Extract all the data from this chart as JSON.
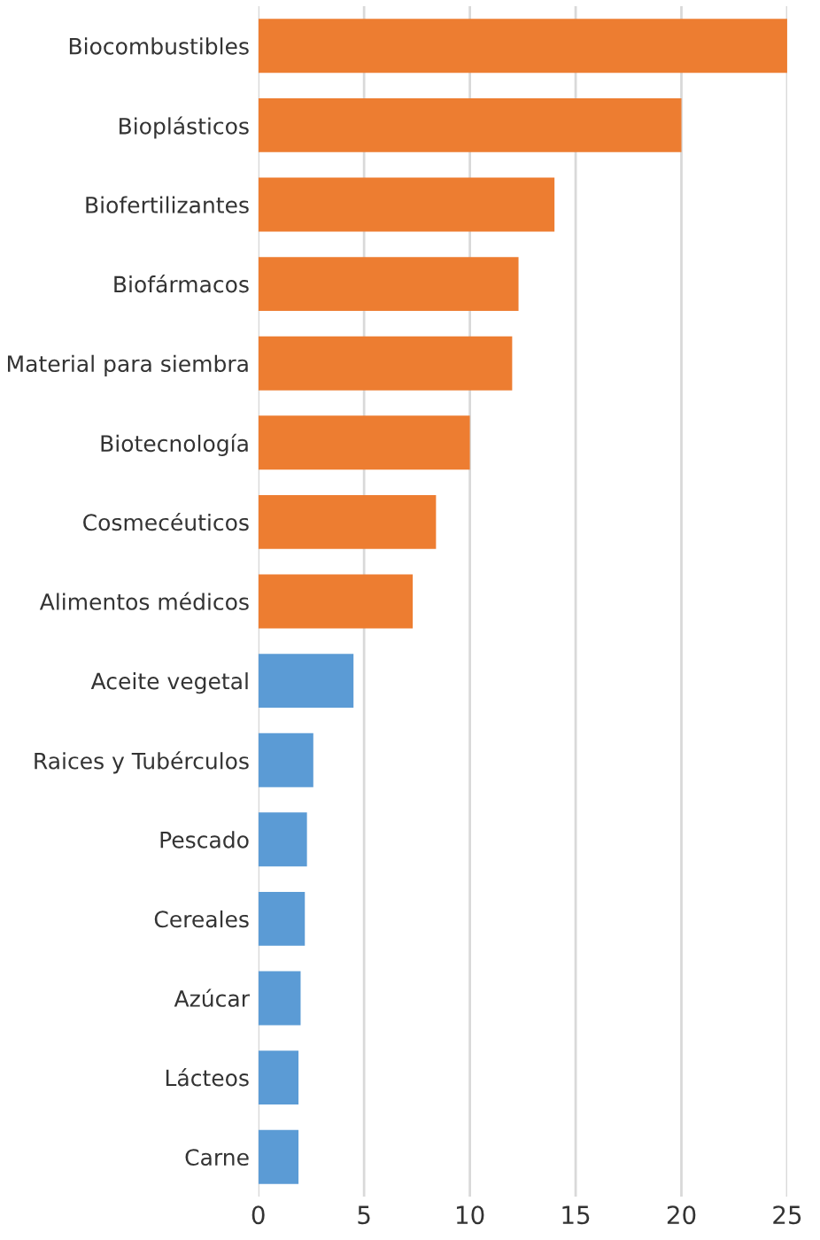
{
  "chart_data": {
    "type": "bar",
    "orientation": "horizontal",
    "categories": [
      "Biocombustibles",
      "Bioplásticos",
      "Biofertilizantes",
      "Biofármacos",
      "Material para siembra",
      "Biotecnología",
      "Cosmecéuticos",
      "Alimentos médicos",
      "Aceite vegetal",
      "Raices y Tubérculos",
      "Pescado",
      "Cereales",
      "Azúcar",
      "Lácteos",
      "Carne"
    ],
    "values": [
      25,
      20,
      14,
      12.3,
      12,
      10,
      8.4,
      7.3,
      4.5,
      2.6,
      2.3,
      2.2,
      2.0,
      1.9,
      1.9
    ],
    "colors": [
      "#ed7d31",
      "#ed7d31",
      "#ed7d31",
      "#ed7d31",
      "#ed7d31",
      "#ed7d31",
      "#ed7d31",
      "#ed7d31",
      "#5b9bd5",
      "#5b9bd5",
      "#5b9bd5",
      "#5b9bd5",
      "#5b9bd5",
      "#5b9bd5",
      "#5b9bd5"
    ],
    "xlim": [
      0,
      25
    ],
    "xticks": [
      0,
      5,
      10,
      15,
      20,
      25
    ],
    "grid": "x"
  }
}
